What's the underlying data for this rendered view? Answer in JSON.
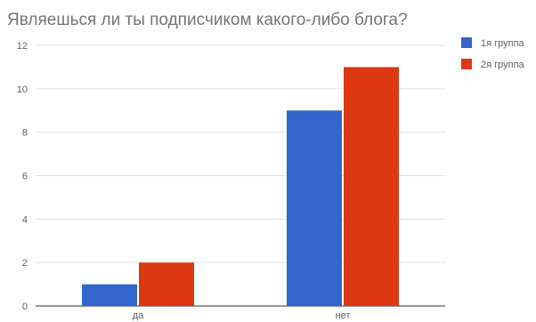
{
  "chart_data": {
    "type": "bar",
    "title": "Являешься ли ты подписчиком какого-либо блога?",
    "xlabel": "",
    "ylabel": "",
    "categories": [
      "да",
      "нет"
    ],
    "series": [
      {
        "name": "1я группа",
        "color": "#3366cc",
        "values": [
          1,
          9
        ]
      },
      {
        "name": "2я группа",
        "color": "#dc3912",
        "values": [
          2,
          11
        ]
      }
    ],
    "ylim": [
      0,
      12
    ],
    "yticks": [
      "0",
      "2",
      "4",
      "6",
      "8",
      "10",
      "12"
    ],
    "grid": true,
    "legend_position": "right"
  }
}
